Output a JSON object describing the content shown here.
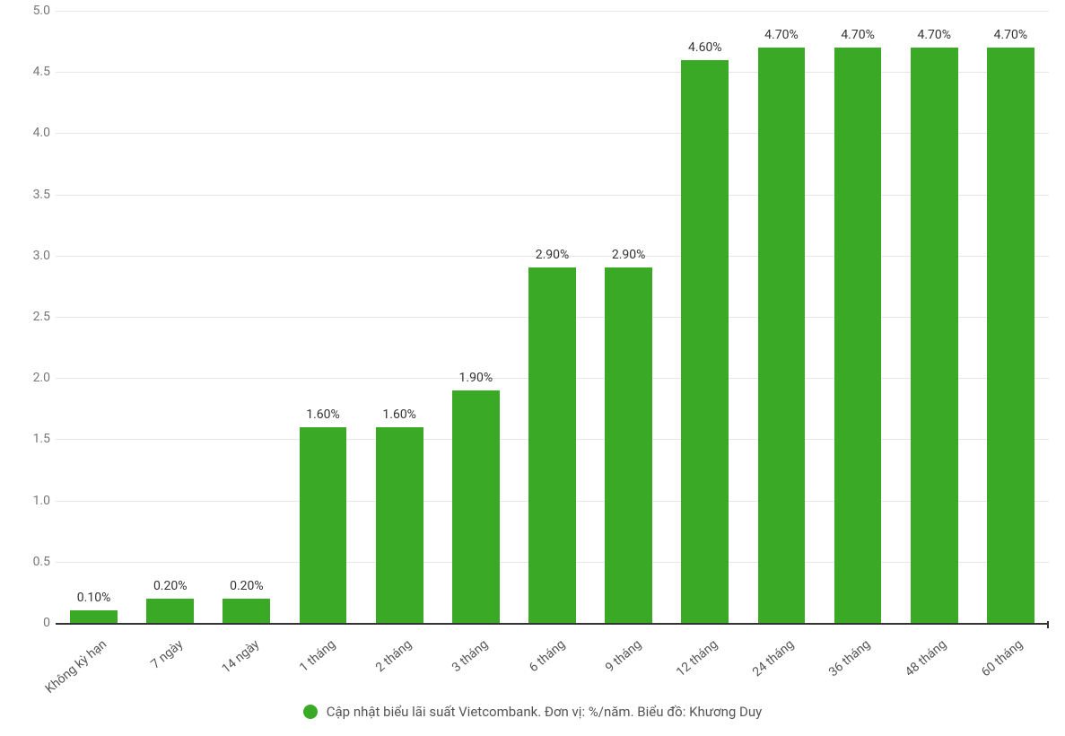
{
  "chart": {
    "type": "bar",
    "background_color": "#ffffff",
    "grid_color": "#e6e6e6",
    "axis_color": "#333333",
    "bar_color": "#3aaa26",
    "data_label_color": "#333333",
    "tick_label_color": "#777777",
    "x_label_color": "#555555",
    "ylim": [
      0,
      5.0
    ],
    "ytick_step": 0.5,
    "yticks": [
      "0",
      "0.5",
      "1.0",
      "1.5",
      "2.0",
      "2.5",
      "3.0",
      "3.5",
      "4.0",
      "4.5",
      "5.0"
    ],
    "bar_width_ratio": 0.62,
    "axis_fontsize": 14,
    "data_label_fontsize": 14,
    "x_label_rotation_deg": -40,
    "categories": [
      "Không kỳ hạn",
      "7 ngày",
      "14 ngày",
      "1 tháng",
      "2 tháng",
      "3 tháng",
      "6 tháng",
      "9 tháng",
      "12 tháng",
      "24 tháng",
      "36 tháng",
      "48 tháng",
      "60 tháng"
    ],
    "values": [
      0.1,
      0.2,
      0.2,
      1.6,
      1.6,
      1.9,
      2.9,
      2.9,
      4.6,
      4.7,
      4.7,
      4.7,
      4.7
    ],
    "value_labels": [
      "0.10%",
      "0.20%",
      "0.20%",
      "1.60%",
      "1.60%",
      "1.90%",
      "2.90%",
      "2.90%",
      "4.60%",
      "4.70%",
      "4.70%",
      "4.70%",
      "4.70%"
    ],
    "legend": {
      "dot_color": "#3aaa26",
      "text": "Cập nhật biểu lãi suất Vietcombank. Đơn vị: %/năm. Biểu đồ: Khương Duy",
      "text_color": "#555555",
      "fontsize": 15
    }
  }
}
